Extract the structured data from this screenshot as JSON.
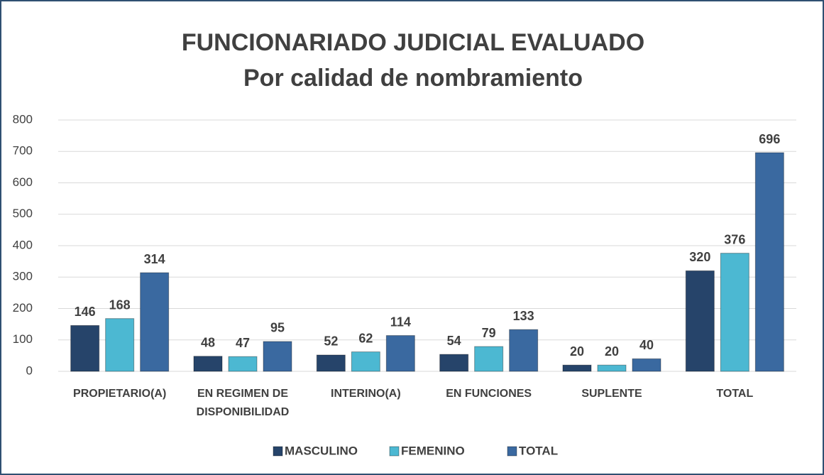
{
  "chart_data": {
    "type": "bar",
    "title": "FUNCIONARIADO JUDICIAL EVALUADO",
    "subtitle": "Por calidad de nombramiento",
    "categories": [
      "PROPIETARIO(A)",
      "EN REGIMEN DE DISPONIBILIDAD",
      "INTERINO(A)",
      "EN FUNCIONES",
      "SUPLENTE",
      "TOTAL"
    ],
    "series": [
      {
        "name": "MASCULINO",
        "color": "#26446a",
        "values": [
          146,
          48,
          52,
          54,
          20,
          320
        ]
      },
      {
        "name": "FEMENINO",
        "color": "#4cb8d2",
        "values": [
          168,
          47,
          62,
          79,
          20,
          376
        ]
      },
      {
        "name": "TOTAL",
        "color": "#3a69a0",
        "values": [
          314,
          95,
          114,
          133,
          40,
          696
        ]
      }
    ],
    "ylim": [
      0,
      800
    ],
    "yticks": [
      0,
      100,
      200,
      300,
      400,
      500,
      600,
      700,
      800
    ],
    "grid": true,
    "legend": "bottom"
  }
}
